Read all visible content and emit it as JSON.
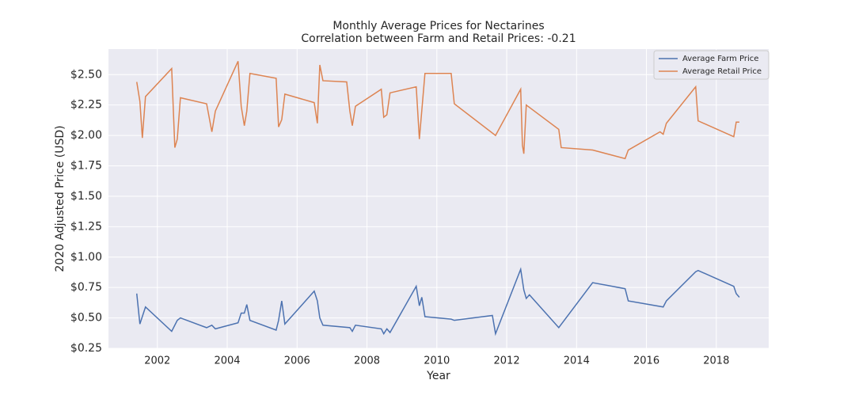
{
  "chart_data": {
    "type": "line",
    "title": "Monthly Average Prices for Nectarines",
    "subtitle": "Correlation between Farm and Retail Prices: -0.21",
    "xlabel": "Year",
    "ylabel": "2020 Adjusted Price (USD)",
    "xlim": [
      2000.6,
      2019.5
    ],
    "xticks": [
      2002,
      2004,
      2006,
      2008,
      2010,
      2012,
      2014,
      2016,
      2018
    ],
    "ylim": [
      0.25,
      2.71
    ],
    "yticks": [
      {
        "value": 0.25,
        "label": "$0.25"
      },
      {
        "value": 0.5,
        "label": "$0.50"
      },
      {
        "value": 0.75,
        "label": "$0.75"
      },
      {
        "value": 1.0,
        "label": "$1.00"
      },
      {
        "value": 1.25,
        "label": "$1.25"
      },
      {
        "value": 1.5,
        "label": "$1.50"
      },
      {
        "value": 1.75,
        "label": "$1.75"
      },
      {
        "value": 2.0,
        "label": "$2.00"
      },
      {
        "value": 2.25,
        "label": "$2.25"
      },
      {
        "value": 2.5,
        "label": "$2.50"
      }
    ],
    "grid": true,
    "legend": "upper right",
    "series": [
      {
        "name": "Average Farm Price",
        "color": "#4c72b0",
        "x": [
          2001.41,
          2001.5,
          2001.66,
          2002.41,
          2002.57,
          2002.66,
          2003.41,
          2003.56,
          2003.66,
          2004.31,
          2004.4,
          2004.49,
          2004.56,
          2004.65,
          2005.4,
          2005.47,
          2005.56,
          2005.65,
          2006.49,
          2006.58,
          2006.65,
          2006.74,
          2007.51,
          2007.58,
          2007.67,
          2008.41,
          2008.48,
          2008.57,
          2008.66,
          2009.41,
          2009.5,
          2009.57,
          2009.66,
          2010.41,
          2010.5,
          2011.59,
          2011.68,
          2012.4,
          2012.49,
          2012.56,
          2012.65,
          2013.49,
          2014.46,
          2015.39,
          2015.48,
          2016.48,
          2016.57,
          2017.41,
          2017.48,
          2018.5,
          2018.57,
          2018.66
        ],
        "values": [
          0.7,
          0.45,
          0.59,
          0.39,
          0.48,
          0.5,
          0.42,
          0.44,
          0.41,
          0.46,
          0.54,
          0.54,
          0.61,
          0.48,
          0.4,
          0.48,
          0.64,
          0.45,
          0.72,
          0.64,
          0.5,
          0.44,
          0.42,
          0.39,
          0.44,
          0.41,
          0.37,
          0.41,
          0.38,
          0.76,
          0.6,
          0.67,
          0.51,
          0.49,
          0.48,
          0.52,
          0.37,
          0.9,
          0.73,
          0.66,
          0.69,
          0.42,
          0.79,
          0.74,
          0.64,
          0.59,
          0.64,
          0.88,
          0.89,
          0.76,
          0.7,
          0.67
        ]
      },
      {
        "name": "Average Retail Price",
        "color": "#dd8452",
        "x": [
          2001.41,
          2001.5,
          2001.57,
          2001.66,
          2002.41,
          2002.5,
          2002.57,
          2002.66,
          2003.41,
          2003.56,
          2003.66,
          2004.31,
          2004.4,
          2004.49,
          2004.56,
          2004.65,
          2005.4,
          2005.47,
          2005.56,
          2005.65,
          2006.49,
          2006.58,
          2006.65,
          2006.74,
          2007.42,
          2007.51,
          2007.58,
          2007.67,
          2008.41,
          2008.48,
          2008.57,
          2008.66,
          2009.41,
          2009.5,
          2009.66,
          2010.41,
          2010.5,
          2011.68,
          2012.4,
          2012.45,
          2012.49,
          2012.56,
          2013.49,
          2013.56,
          2014.46,
          2015.39,
          2015.48,
          2016.39,
          2016.48,
          2016.57,
          2017.41,
          2017.48,
          2018.5,
          2018.57,
          2018.66
        ],
        "values": [
          2.44,
          2.28,
          1.98,
          2.32,
          2.55,
          1.9,
          1.97,
          2.31,
          2.26,
          2.03,
          2.2,
          2.61,
          2.24,
          2.08,
          2.2,
          2.51,
          2.47,
          2.07,
          2.13,
          2.34,
          2.27,
          2.1,
          2.58,
          2.45,
          2.44,
          2.2,
          2.08,
          2.24,
          2.38,
          2.15,
          2.17,
          2.35,
          2.4,
          1.97,
          2.51,
          2.51,
          2.26,
          2.0,
          2.38,
          1.92,
          1.85,
          2.25,
          2.05,
          1.9,
          1.88,
          1.81,
          1.88,
          2.03,
          2.01,
          2.1,
          2.4,
          2.12,
          1.99,
          2.11,
          2.11
        ]
      }
    ]
  }
}
